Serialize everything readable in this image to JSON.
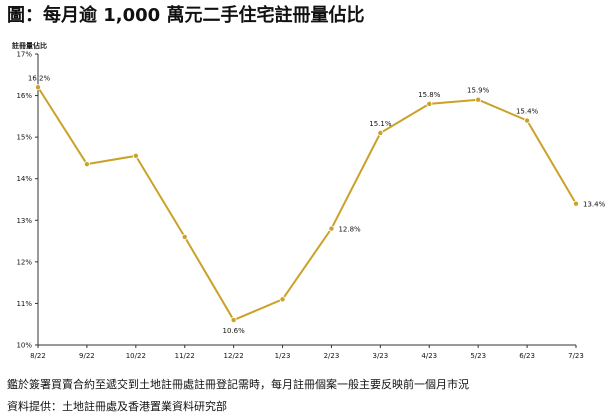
{
  "page": {
    "title": "圖：每月逾 1,000 萬元二手住宅註冊量佔比",
    "note": "鑑於簽署買賣合約至遞交到土地註冊處註冊登記需時，每月註冊個案一般主要反映前一個月市況",
    "source": "資料提供：土地註冊處及香港置業資料研究部"
  },
  "colors": {
    "line": "#C9A227",
    "axis": "#333333"
  },
  "chart_data": {
    "type": "line",
    "title": "圖：每月逾 1,000 萬元二手住宅註冊量佔比",
    "ylabel": "註冊量佔比",
    "xlabel": "",
    "categories": [
      "8/22",
      "9/22",
      "10/22",
      "11/22",
      "12/22",
      "1/23",
      "2/23",
      "3/23",
      "4/23",
      "5/23",
      "6/23",
      "7/23"
    ],
    "series": [
      {
        "values": [
          16.2,
          14.35,
          14.55,
          12.6,
          10.6,
          11.1,
          12.8,
          15.1,
          15.8,
          15.9,
          15.4,
          13.4
        ]
      }
    ],
    "data_labels": [
      "16.2%",
      null,
      null,
      null,
      "10.6%",
      null,
      "12.8%",
      "15.1%",
      "15.8%",
      "15.9%",
      "15.4%",
      "13.4%"
    ],
    "ylim": [
      10,
      17
    ],
    "yticks": [
      10,
      11,
      12,
      13,
      14,
      15,
      16,
      17
    ],
    "ytick_labels": [
      "10%",
      "11%",
      "12%",
      "13%",
      "14%",
      "15%",
      "16%",
      "17%"
    ],
    "grid": false,
    "legend": "none"
  }
}
